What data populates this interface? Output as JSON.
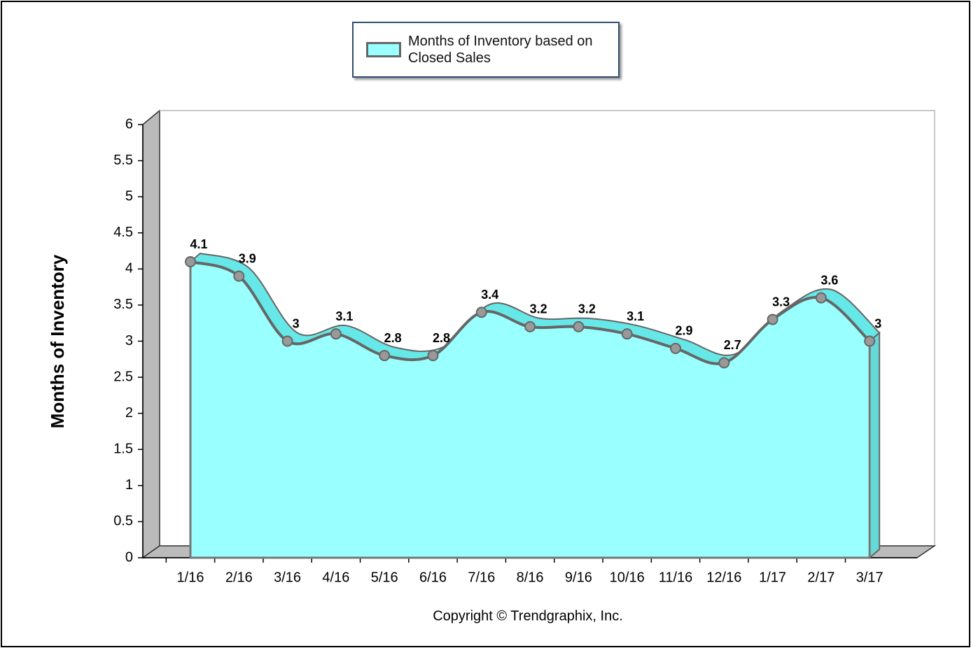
{
  "chart_data": {
    "type": "area",
    "y_label": "Months of Inventory",
    "copyright": "Copyright © Trendgraphix, Inc.",
    "categories": [
      "1/16",
      "2/16",
      "3/16",
      "4/16",
      "5/16",
      "6/16",
      "7/16",
      "8/16",
      "9/16",
      "10/16",
      "11/16",
      "12/16",
      "1/17",
      "2/17",
      "3/17"
    ],
    "series": [
      {
        "name": "Months of Inventory based on Closed Sales",
        "color": "#99ffff",
        "values": [
          4.1,
          3.9,
          3,
          3.1,
          2.8,
          2.8,
          3.4,
          3.2,
          3.2,
          3.1,
          2.9,
          2.7,
          3.3,
          3.6,
          3
        ]
      }
    ],
    "ylim": [
      0,
      6
    ],
    "yticks": [
      0,
      0.5,
      1,
      1.5,
      2,
      2.5,
      3,
      3.5,
      4,
      4.5,
      5,
      5.5,
      6
    ],
    "legend": "top",
    "grid": false
  }
}
